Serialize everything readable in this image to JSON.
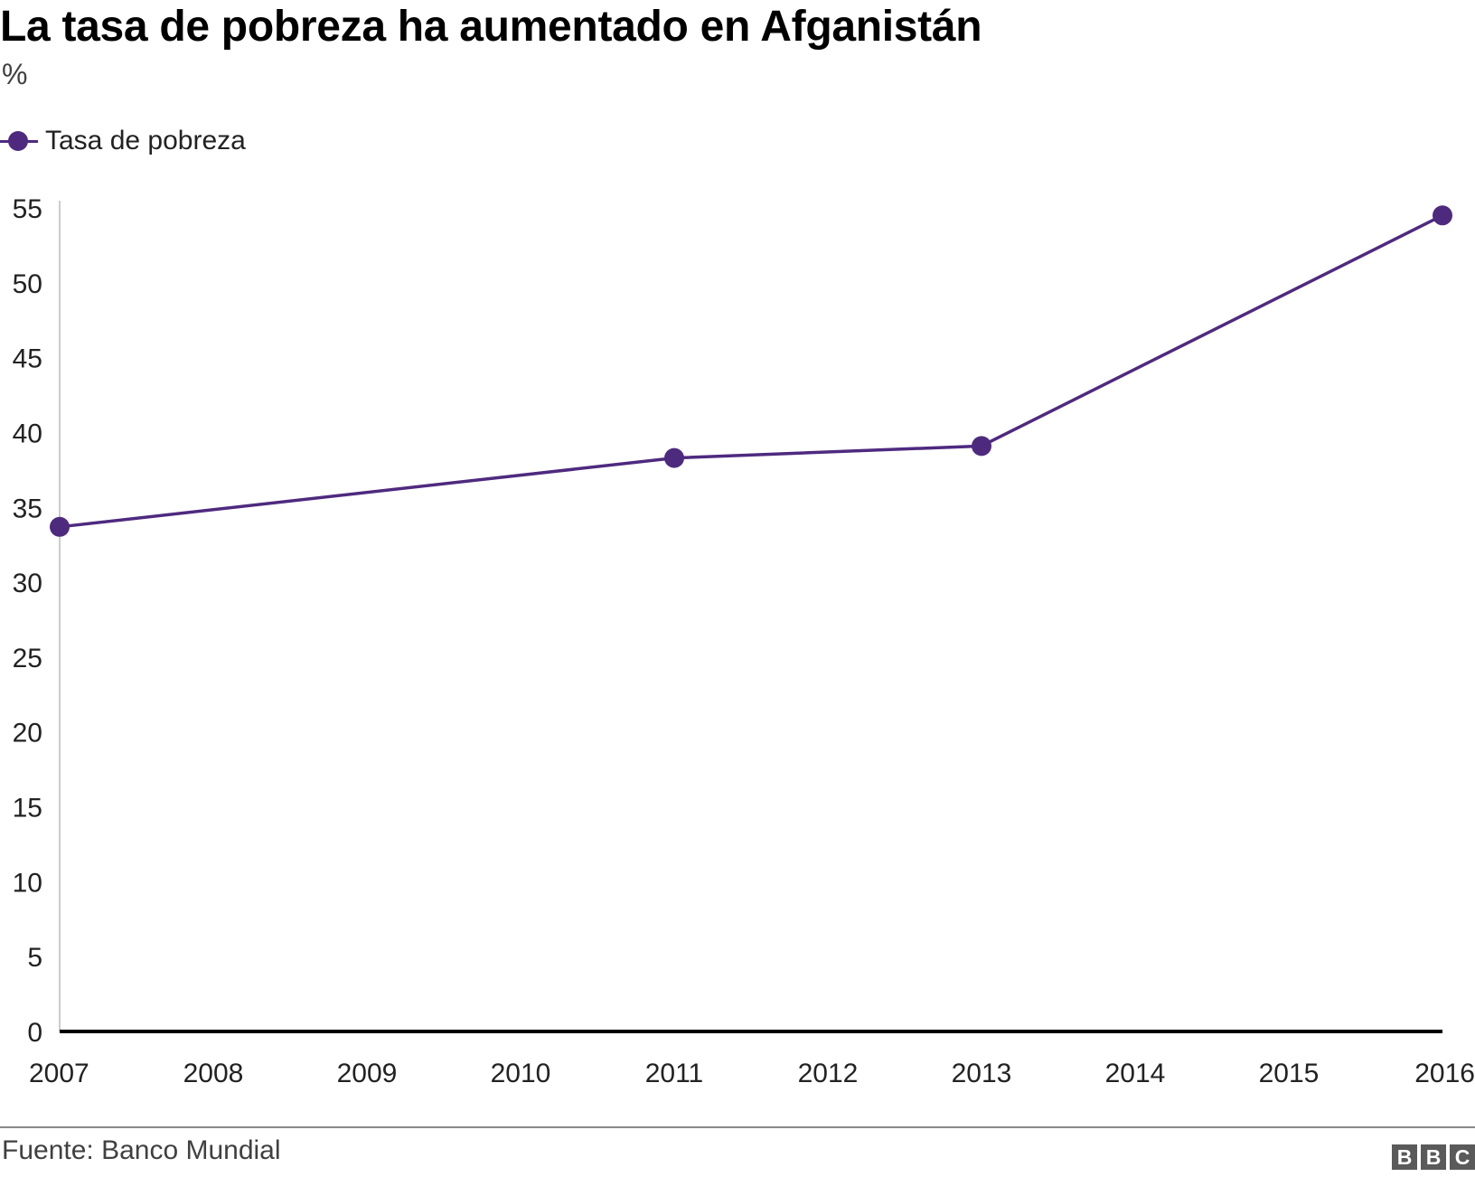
{
  "title": "La tasa de pobreza ha aumentado en Afganistán",
  "subtitle": "%",
  "source": "Fuente: Banco Mundial",
  "logo": {
    "text": "BBC"
  },
  "colors": {
    "series": "#4e2a7f",
    "axis": "#000000",
    "axis_light": "#cccccc",
    "text": "#222222"
  },
  "chart_data": {
    "type": "line",
    "title": "La tasa de pobreza ha aumentado en Afganistán",
    "ylabel": "%",
    "xlabel": "",
    "x_ticks": [
      "2007",
      "2008",
      "2009",
      "2010",
      "2011",
      "2012",
      "2013",
      "2014",
      "2015",
      "2016"
    ],
    "y_ticks": [
      "0",
      "5",
      "10",
      "15",
      "20",
      "25",
      "30",
      "35",
      "40",
      "45",
      "50",
      "55"
    ],
    "xlim": [
      2007,
      2016
    ],
    "ylim": [
      0,
      55
    ],
    "grid": false,
    "legend_position": "top-left",
    "series": [
      {
        "name": "Tasa de pobreza",
        "points": [
          {
            "x": 2007,
            "y": 33.7
          },
          {
            "x": 2011,
            "y": 38.3
          },
          {
            "x": 2013,
            "y": 39.1
          },
          {
            "x": 2016,
            "y": 54.5
          }
        ]
      }
    ]
  }
}
